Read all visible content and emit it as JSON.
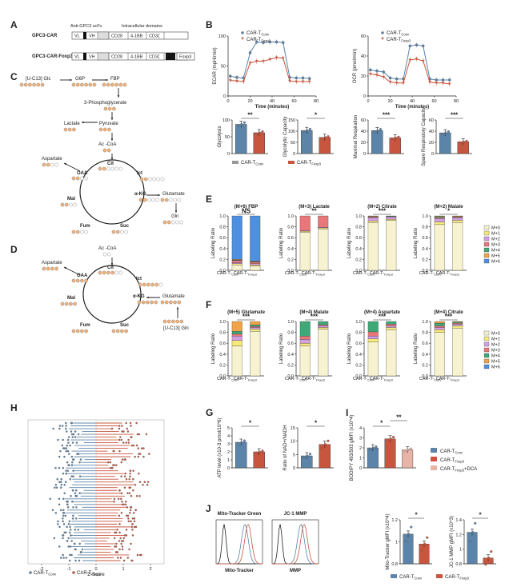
{
  "colors": {
    "conv": "#5b84a8",
    "foxp3": "#c8553d",
    "dca": "#e8b4a8",
    "orange": "#f0b37e",
    "bar": "#111111"
  },
  "panels": {
    "A": "A",
    "B": "B",
    "C": "C",
    "D": "D",
    "E": "E",
    "F": "F",
    "G": "G",
    "H": "H",
    "I": "I",
    "J": "J"
  },
  "panel_a": {
    "header_scfv": "Anti-GPC3 scFv",
    "header_intra": "Intracellular domains",
    "row1": "GPC3-CAR",
    "row2": "GPC3-CAR-Foxp3",
    "vl": "VL",
    "vh": "VH",
    "cd28": "CD28",
    "bb": "4-1BB",
    "cd3": "CD3ζ",
    "t2a": "T2A",
    "foxp3": "Foxp3"
  },
  "legend": {
    "conv_main": "CAR-T",
    "conv_sub": "Conv",
    "foxp3_main": "CAR-T",
    "foxp3_sub": "Foxp3",
    "dca_main": "CAR-T",
    "dca_sub": "Foxp3",
    "dca_suffix": "+DCA"
  },
  "pathway_c": {
    "glc": "[U-C13] Glc",
    "g6p": "G6P",
    "fbp": "FBP",
    "pg": "3-Phosphoglycerate",
    "lactate": "Lactate",
    "pyruvate": "Pyruvate",
    "acoa": "Ac -CoA",
    "aspartate": "Aspartate",
    "oaa": "OAA",
    "cit": "Cit",
    "ict": "Ict",
    "mal": "Mal",
    "akg": "α-KG",
    "glutamate": "Glutamate",
    "fum": "Fum",
    "suc": "Suc",
    "gln": "Gln"
  },
  "pathway_d": {
    "acoa": "Ac -CoA",
    "aspartate": "Aspartate",
    "oaa": "OAA",
    "cit": "Cit",
    "ict": "Ict",
    "mal": "Mal",
    "akg": "α-KG",
    "glutamate": "Glutamate",
    "fum": "Fum",
    "suc": "Suc",
    "gln_src": "[U-C13] Gln"
  },
  "chart_data": [
    {
      "id": "B-ecar",
      "type": "line",
      "ylabel": "ECAR (mpH/min)",
      "xlabel": "Time (minutes)",
      "xlim": [
        0,
        80
      ],
      "ylim": [
        0,
        100
      ],
      "xticks": [
        0,
        20,
        40,
        60,
        80
      ],
      "yticks": [
        0,
        50,
        100
      ],
      "x": [
        2,
        8,
        14,
        20,
        26,
        32,
        38,
        44,
        50,
        56,
        62,
        68,
        74
      ],
      "series": [
        {
          "name": "CAR-T Conv",
          "values": [
            33,
            31,
            30,
            72,
            90,
            89,
            90,
            90,
            89,
            31,
            30,
            30,
            29
          ]
        },
        {
          "name": "CAR-T Foxp3",
          "values": [
            26,
            25,
            24,
            55,
            58,
            58,
            61,
            64,
            63,
            25,
            24,
            24,
            24
          ]
        }
      ]
    },
    {
      "id": "B-ocr",
      "type": "line",
      "ylabel": "OCR (pmol/min)",
      "xlabel": "Time (minutes)",
      "xlim": [
        0,
        80
      ],
      "ylim": [
        0,
        60
      ],
      "xticks": [
        0,
        20,
        40,
        60,
        80
      ],
      "yticks": [
        0,
        20,
        40,
        60
      ],
      "x": [
        2,
        8,
        14,
        20,
        26,
        32,
        38,
        44,
        50,
        56,
        62,
        68,
        74
      ],
      "series": [
        {
          "name": "CAR-T Conv",
          "values": [
            26,
            25,
            24,
            18,
            17,
            17,
            50,
            51,
            50,
            17,
            16,
            16,
            16
          ]
        },
        {
          "name": "CAR-T Foxp3",
          "values": [
            22,
            21,
            19,
            14,
            13,
            13,
            36,
            37,
            35,
            14,
            13,
            13,
            12
          ]
        }
      ]
    },
    {
      "id": "B-glycolysis",
      "type": "bar",
      "ylabel": "Glycolysis",
      "ylim": [
        0,
        100
      ],
      "yticks": [
        0,
        50,
        100
      ],
      "categories": [
        "CAR-T Conv",
        "CAR-T Foxp3"
      ],
      "values": [
        87,
        62
      ],
      "significance": "**"
    },
    {
      "id": "B-glycap",
      "type": "bar",
      "ylabel": "Glycolytic Capacity",
      "ylim": [
        0,
        150
      ],
      "yticks": [
        0,
        50,
        100,
        150
      ],
      "categories": [
        "CAR-T Conv",
        "CAR-T Foxp3"
      ],
      "values": [
        103,
        72
      ],
      "significance": "*"
    },
    {
      "id": "B-maxresp",
      "type": "bar",
      "ylabel": "Maximal Respiration",
      "ylim": [
        0,
        60
      ],
      "yticks": [
        0,
        20,
        40,
        60
      ],
      "categories": [
        "CAR-T Conv",
        "CAR-T Foxp3"
      ],
      "values": [
        41,
        28
      ],
      "significance": "***"
    },
    {
      "id": "B-spare",
      "type": "bar",
      "ylabel": "Spare Respiratory Capacity",
      "ylim": [
        0,
        60
      ],
      "yticks": [
        0,
        20,
        40,
        60
      ],
      "categories": [
        "CAR-T Conv",
        "CAR-T Foxp3"
      ],
      "values": [
        37,
        21
      ],
      "significance": "***"
    },
    {
      "id": "E-fbp",
      "type": "stacked-bar",
      "title": "(M+6) FBP",
      "ylabel": "Labeling Ratio",
      "significance": "NS",
      "isotopologues": [
        "M+0",
        "M+1",
        "M+2",
        "M+3",
        "M+4",
        "M+5",
        "M+6"
      ],
      "groups": [
        {
          "name": "CAR-T Conv",
          "values": [
            0.1,
            0.02,
            0.02,
            0.04,
            0.01,
            0.01,
            0.8
          ]
        },
        {
          "name": "CAR-T Foxp3",
          "values": [
            0.08,
            0.02,
            0.02,
            0.03,
            0.01,
            0.01,
            0.83
          ]
        }
      ]
    },
    {
      "id": "E-lactate",
      "type": "stacked-bar",
      "title": "(M+3) Lactate",
      "ylabel": "Labeling Ratio",
      "significance": "**",
      "isotopologues": [
        "M+0",
        "M+1",
        "M+2",
        "M+3",
        "M+4",
        "M+5",
        "M+6"
      ],
      "groups": [
        {
          "name": "CAR-T Conv",
          "values": [
            0.7,
            0.02,
            0.01,
            0.27,
            0,
            0,
            0
          ]
        },
        {
          "name": "CAR-T Foxp3",
          "values": [
            0.76,
            0.02,
            0.01,
            0.21,
            0,
            0,
            0
          ]
        }
      ]
    },
    {
      "id": "E-citrate",
      "type": "stacked-bar",
      "title": "(M+2) Citrate",
      "ylabel": "Labeling Ratio",
      "significance": "***",
      "isotopologues": [
        "M+0",
        "M+1",
        "M+2",
        "M+3",
        "M+4",
        "M+5",
        "M+6"
      ],
      "groups": [
        {
          "name": "CAR-T Conv",
          "values": [
            0.88,
            0.03,
            0.06,
            0.01,
            0.01,
            0.01,
            0
          ]
        },
        {
          "name": "CAR-T Foxp3",
          "values": [
            0.92,
            0.02,
            0.04,
            0.01,
            0.01,
            0,
            0
          ]
        }
      ]
    },
    {
      "id": "E-malate",
      "type": "stacked-bar",
      "title": "(M+2) Malate",
      "ylabel": "Labeling Ratio",
      "significance": "*",
      "isotopologues": [
        "M+0",
        "M+1",
        "M+2",
        "M+3",
        "M+4",
        "M+5",
        "M+6"
      ],
      "groups": [
        {
          "name": "CAR-T Conv",
          "values": [
            0.84,
            0.05,
            0.06,
            0.02,
            0.02,
            0.01,
            0
          ]
        },
        {
          "name": "CAR-T Foxp3",
          "values": [
            0.88,
            0.04,
            0.05,
            0.01,
            0.01,
            0.01,
            0
          ]
        }
      ]
    },
    {
      "id": "F-glutamate",
      "type": "stacked-bar",
      "title": "(M+5) Glutamate",
      "ylabel": "Labeling Ratio",
      "significance": "***",
      "isotopologues": [
        "M+0",
        "M+1",
        "M+2",
        "M+3",
        "M+4",
        "M+5",
        "M+6"
      ],
      "groups": [
        {
          "name": "CAR-T Conv",
          "values": [
            0.55,
            0.1,
            0.08,
            0.04,
            0.05,
            0.18,
            0
          ]
        },
        {
          "name": "CAR-T Foxp3",
          "values": [
            0.82,
            0.04,
            0.03,
            0.02,
            0.03,
            0.06,
            0
          ]
        }
      ]
    },
    {
      "id": "F-malate",
      "type": "stacked-bar",
      "title": "(M+4) Malate",
      "ylabel": "Labeling Ratio",
      "significance": "***",
      "isotopologues": [
        "M+0",
        "M+1",
        "M+2",
        "M+3",
        "M+4",
        "M+5",
        "M+6"
      ],
      "groups": [
        {
          "name": "CAR-T Conv",
          "values": [
            0.55,
            0.05,
            0.07,
            0.06,
            0.27,
            0,
            0
          ]
        },
        {
          "name": "CAR-T Foxp3",
          "values": [
            0.86,
            0.03,
            0.03,
            0.02,
            0.06,
            0,
            0
          ]
        }
      ]
    },
    {
      "id": "F-aspartate",
      "type": "stacked-bar",
      "title": "(M+4) Aspartate",
      "ylabel": "Labeling Ratio",
      "significance": "***",
      "isotopologues": [
        "M+0",
        "M+1",
        "M+2",
        "M+3",
        "M+4",
        "M+5",
        "M+6"
      ],
      "groups": [
        {
          "name": "CAR-T Conv",
          "values": [
            0.62,
            0.06,
            0.05,
            0.08,
            0.19,
            0,
            0
          ]
        },
        {
          "name": "CAR-T Foxp3",
          "values": [
            0.85,
            0.04,
            0.03,
            0.03,
            0.05,
            0,
            0
          ]
        }
      ]
    },
    {
      "id": "F-citrate",
      "type": "stacked-bar",
      "title": "(M+4) Citrate",
      "ylabel": "Labeling Ratio",
      "significance": "***",
      "isotopologues": [
        "M+0",
        "M+1",
        "M+2",
        "M+3",
        "M+4",
        "M+5",
        "M+6"
      ],
      "groups": [
        {
          "name": "CAR-T Conv",
          "values": [
            0.8,
            0.05,
            0.04,
            0.03,
            0.05,
            0.03,
            0
          ]
        },
        {
          "name": "CAR-T Foxp3",
          "values": [
            0.88,
            0.04,
            0.03,
            0.02,
            0.02,
            0.01,
            0
          ]
        }
      ]
    },
    {
      "id": "G-atp",
      "type": "bar",
      "ylabel": "ATP level (x10-3 pmol/10^6)",
      "ylim": [
        0,
        5
      ],
      "yticks": [
        0,
        1,
        2,
        3,
        4,
        5
      ],
      "categories": [
        "CAR-T Conv",
        "CAR-T Foxp3"
      ],
      "values": [
        3.2,
        2.0
      ],
      "significance": "*"
    },
    {
      "id": "G-nad",
      "type": "bar",
      "ylabel": "Ratio of NAD+/NADH",
      "ylim": [
        0,
        15
      ],
      "yticks": [
        0,
        5,
        10,
        15
      ],
      "categories": [
        "CAR-T Conv",
        "CAR-T Foxp3"
      ],
      "values": [
        4.5,
        8.8
      ],
      "significance": "*"
    },
    {
      "id": "I-bodipy",
      "type": "bar",
      "ylabel": "BODIPY 493/503 gMFI (x10^4)",
      "ylim": [
        0,
        4
      ],
      "yticks": [
        0,
        1,
        2,
        3,
        4
      ],
      "categories": [
        "CAR-T Conv",
        "CAR-T Foxp3",
        "CAR-T Foxp3+DCA"
      ],
      "values": [
        2.0,
        2.9,
        1.8
      ],
      "significance": [
        "*",
        "**"
      ]
    },
    {
      "id": "J-mito",
      "type": "bar",
      "ylabel": "Mito-Tracker gMFI (x10^4)",
      "ylim": [
        0.8,
        1.2
      ],
      "yticks": [
        0.8,
        1.0,
        1.2
      ],
      "categories": [
        "CAR-T Conv",
        "CAR-T Foxp3"
      ],
      "values": [
        1.07,
        0.98
      ],
      "significance": "*"
    },
    {
      "id": "J-jc1",
      "type": "bar",
      "ylabel": "JC-1 MMP gMFI (x10^3)",
      "ylim": [
        0.8,
        1.4
      ],
      "yticks": [
        0.8,
        1.0,
        1.2,
        1.4
      ],
      "categories": [
        "CAR-T Conv",
        "CAR-T Foxp3"
      ],
      "values": [
        1.23,
        0.88
      ],
      "significance": "*"
    }
  ],
  "panel_e_legend": [
    "M+0",
    "M+1",
    "M+2",
    "M+3",
    "M+4",
    "M+5",
    "M+6"
  ],
  "iso_colors": [
    "#f7f2cf",
    "#f5e97a",
    "#d49ee3",
    "#e8777a",
    "#3fa877",
    "#f1a34a",
    "#4f8fe0"
  ],
  "panel_h": {
    "xlabel": "Z-Score",
    "xticks": [
      "-2",
      "-1",
      "0",
      "1",
      "2"
    ],
    "rows": 50
  },
  "panel_j": {
    "title1": "Mito-Tracker Green",
    "title2": "JC-1 MMP",
    "xlab1": "Mito-Tracker",
    "xlab2": "MMP"
  }
}
